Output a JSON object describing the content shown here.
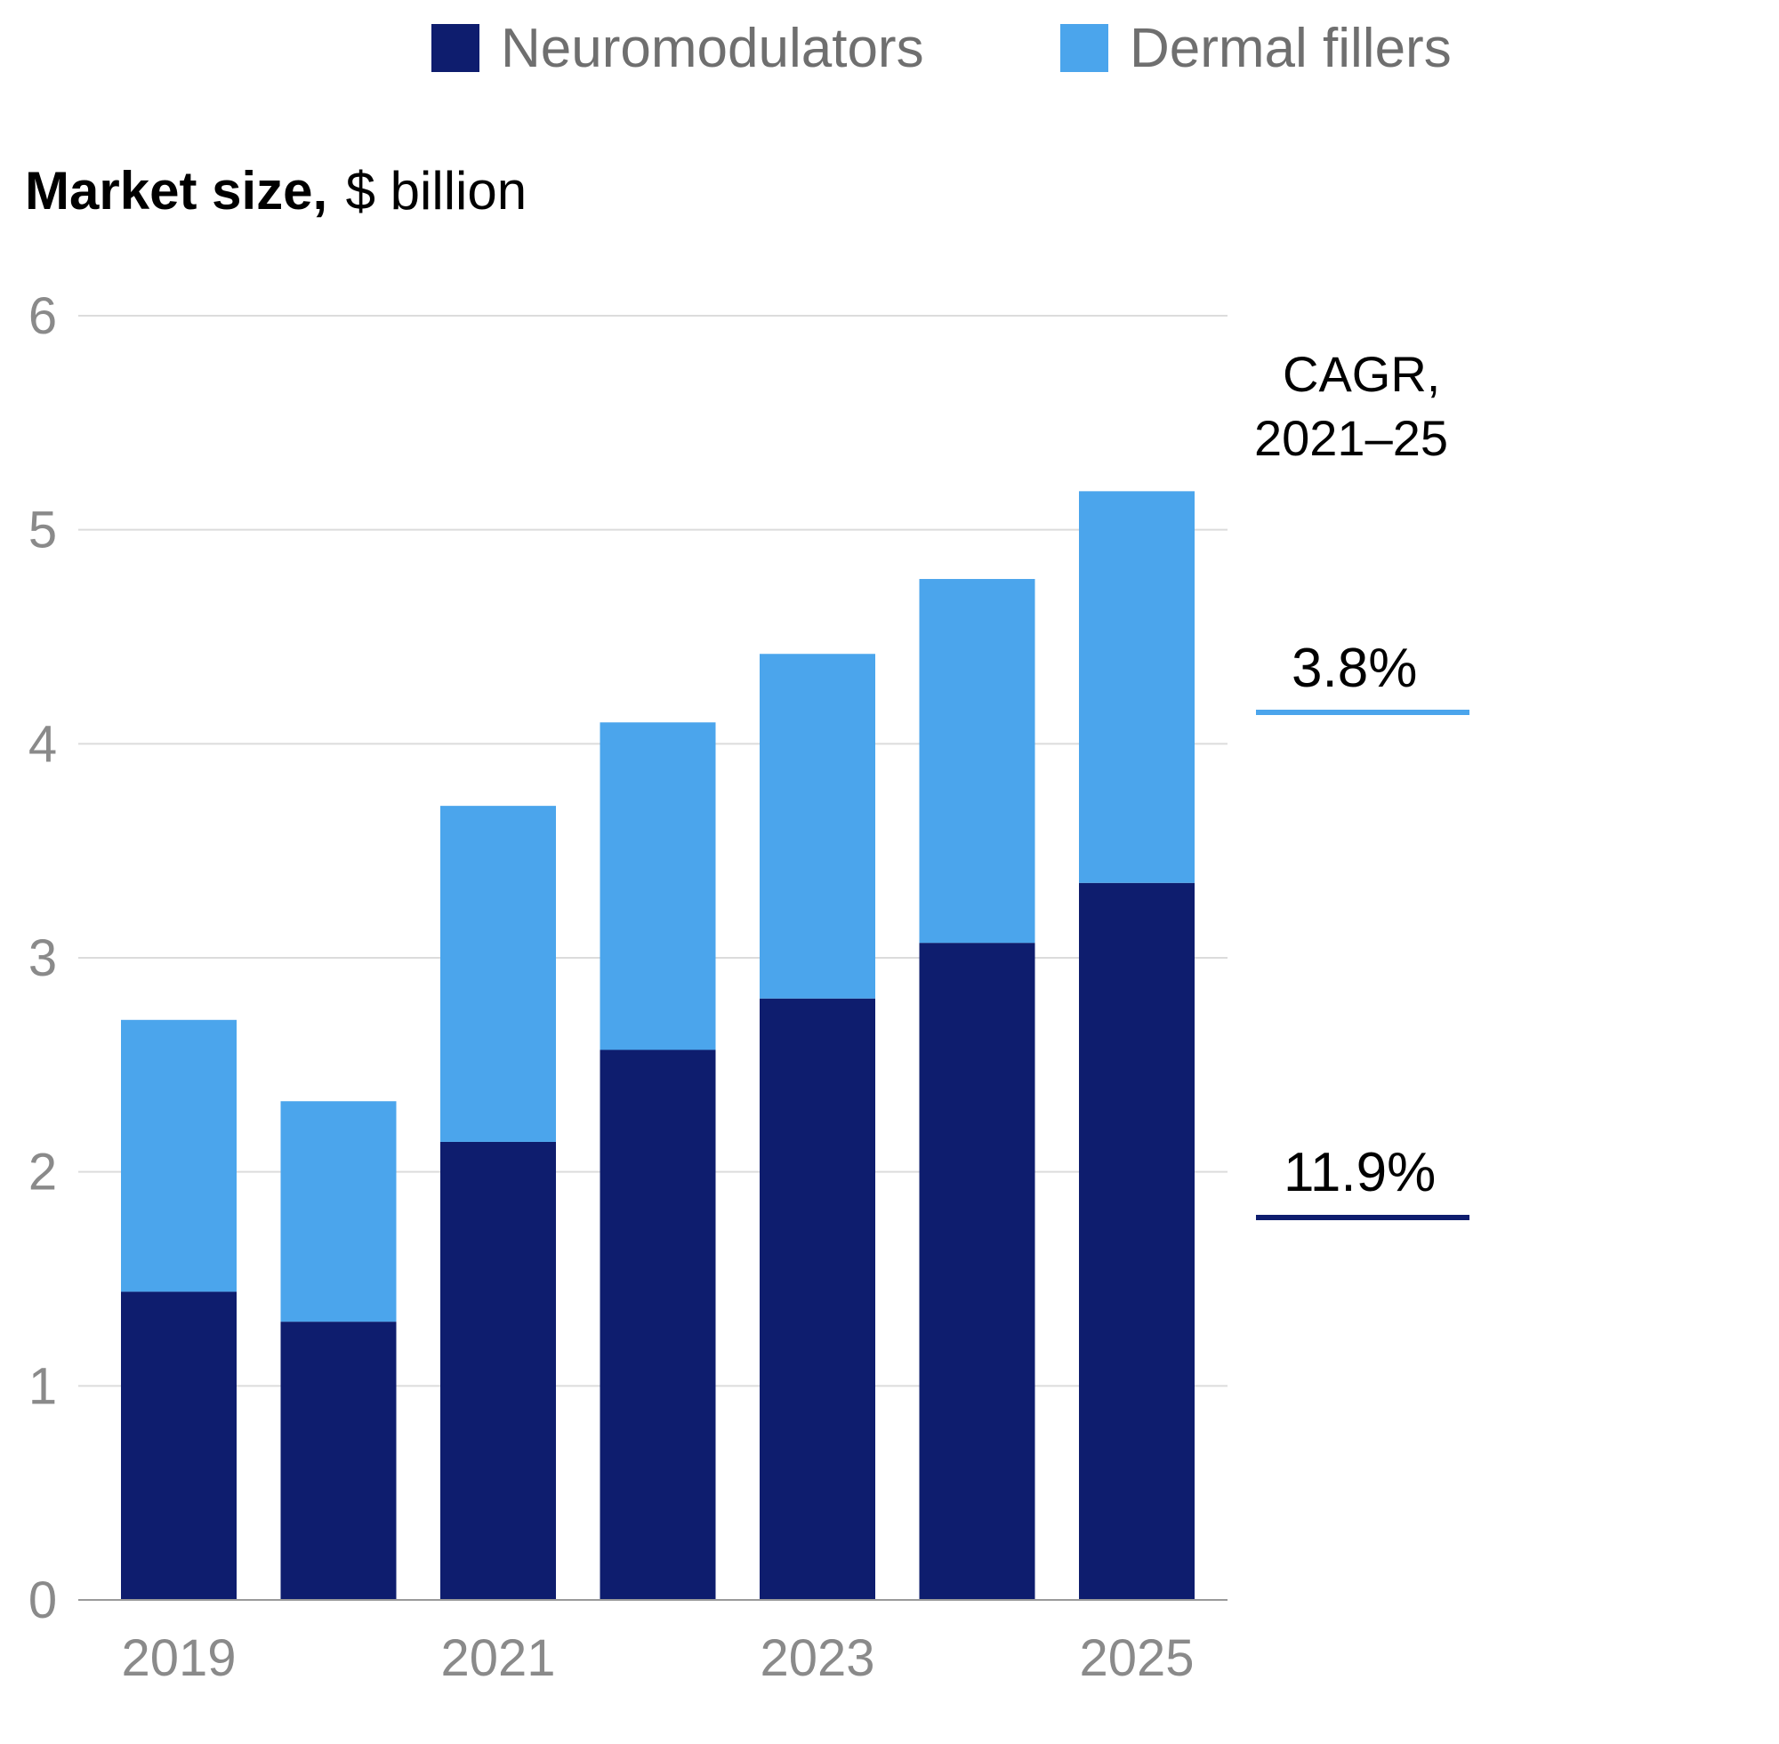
{
  "chart_data": {
    "type": "bar",
    "stacked": true,
    "title": "Market size,",
    "title_unit": "$ billion",
    "categories": [
      "2019",
      "2020",
      "2021",
      "2022",
      "2023",
      "2024",
      "2025"
    ],
    "x_tick_labels": [
      "2019",
      "",
      "2021",
      "",
      "2023",
      "",
      "2025"
    ],
    "series": [
      {
        "name": "Neuromodulators",
        "color": "#0e1d6e",
        "values": [
          1.44,
          1.3,
          2.14,
          2.57,
          2.81,
          3.07,
          3.35
        ]
      },
      {
        "name": "Dermal fillers",
        "color": "#4ba5ec",
        "values": [
          1.27,
          1.03,
          1.57,
          1.53,
          1.61,
          1.7,
          1.83
        ]
      }
    ],
    "y_ticks": [
      "0",
      "1",
      "2",
      "3",
      "4",
      "5",
      "6"
    ],
    "ylim": [
      0,
      6
    ],
    "grid": true,
    "legend_position": "top",
    "cagr": {
      "heading_line1": "CAGR,",
      "heading_line2": "2021–25",
      "entries": [
        {
          "series": "Dermal fillers",
          "label": "3.8%",
          "color": "#4ba5ec"
        },
        {
          "series": "Neuromodulators",
          "label": "11.9%",
          "color": "#0e1d6e"
        }
      ]
    },
    "colors": {
      "grid": "#dcdcdc",
      "axis": "#9a9a9a"
    }
  }
}
